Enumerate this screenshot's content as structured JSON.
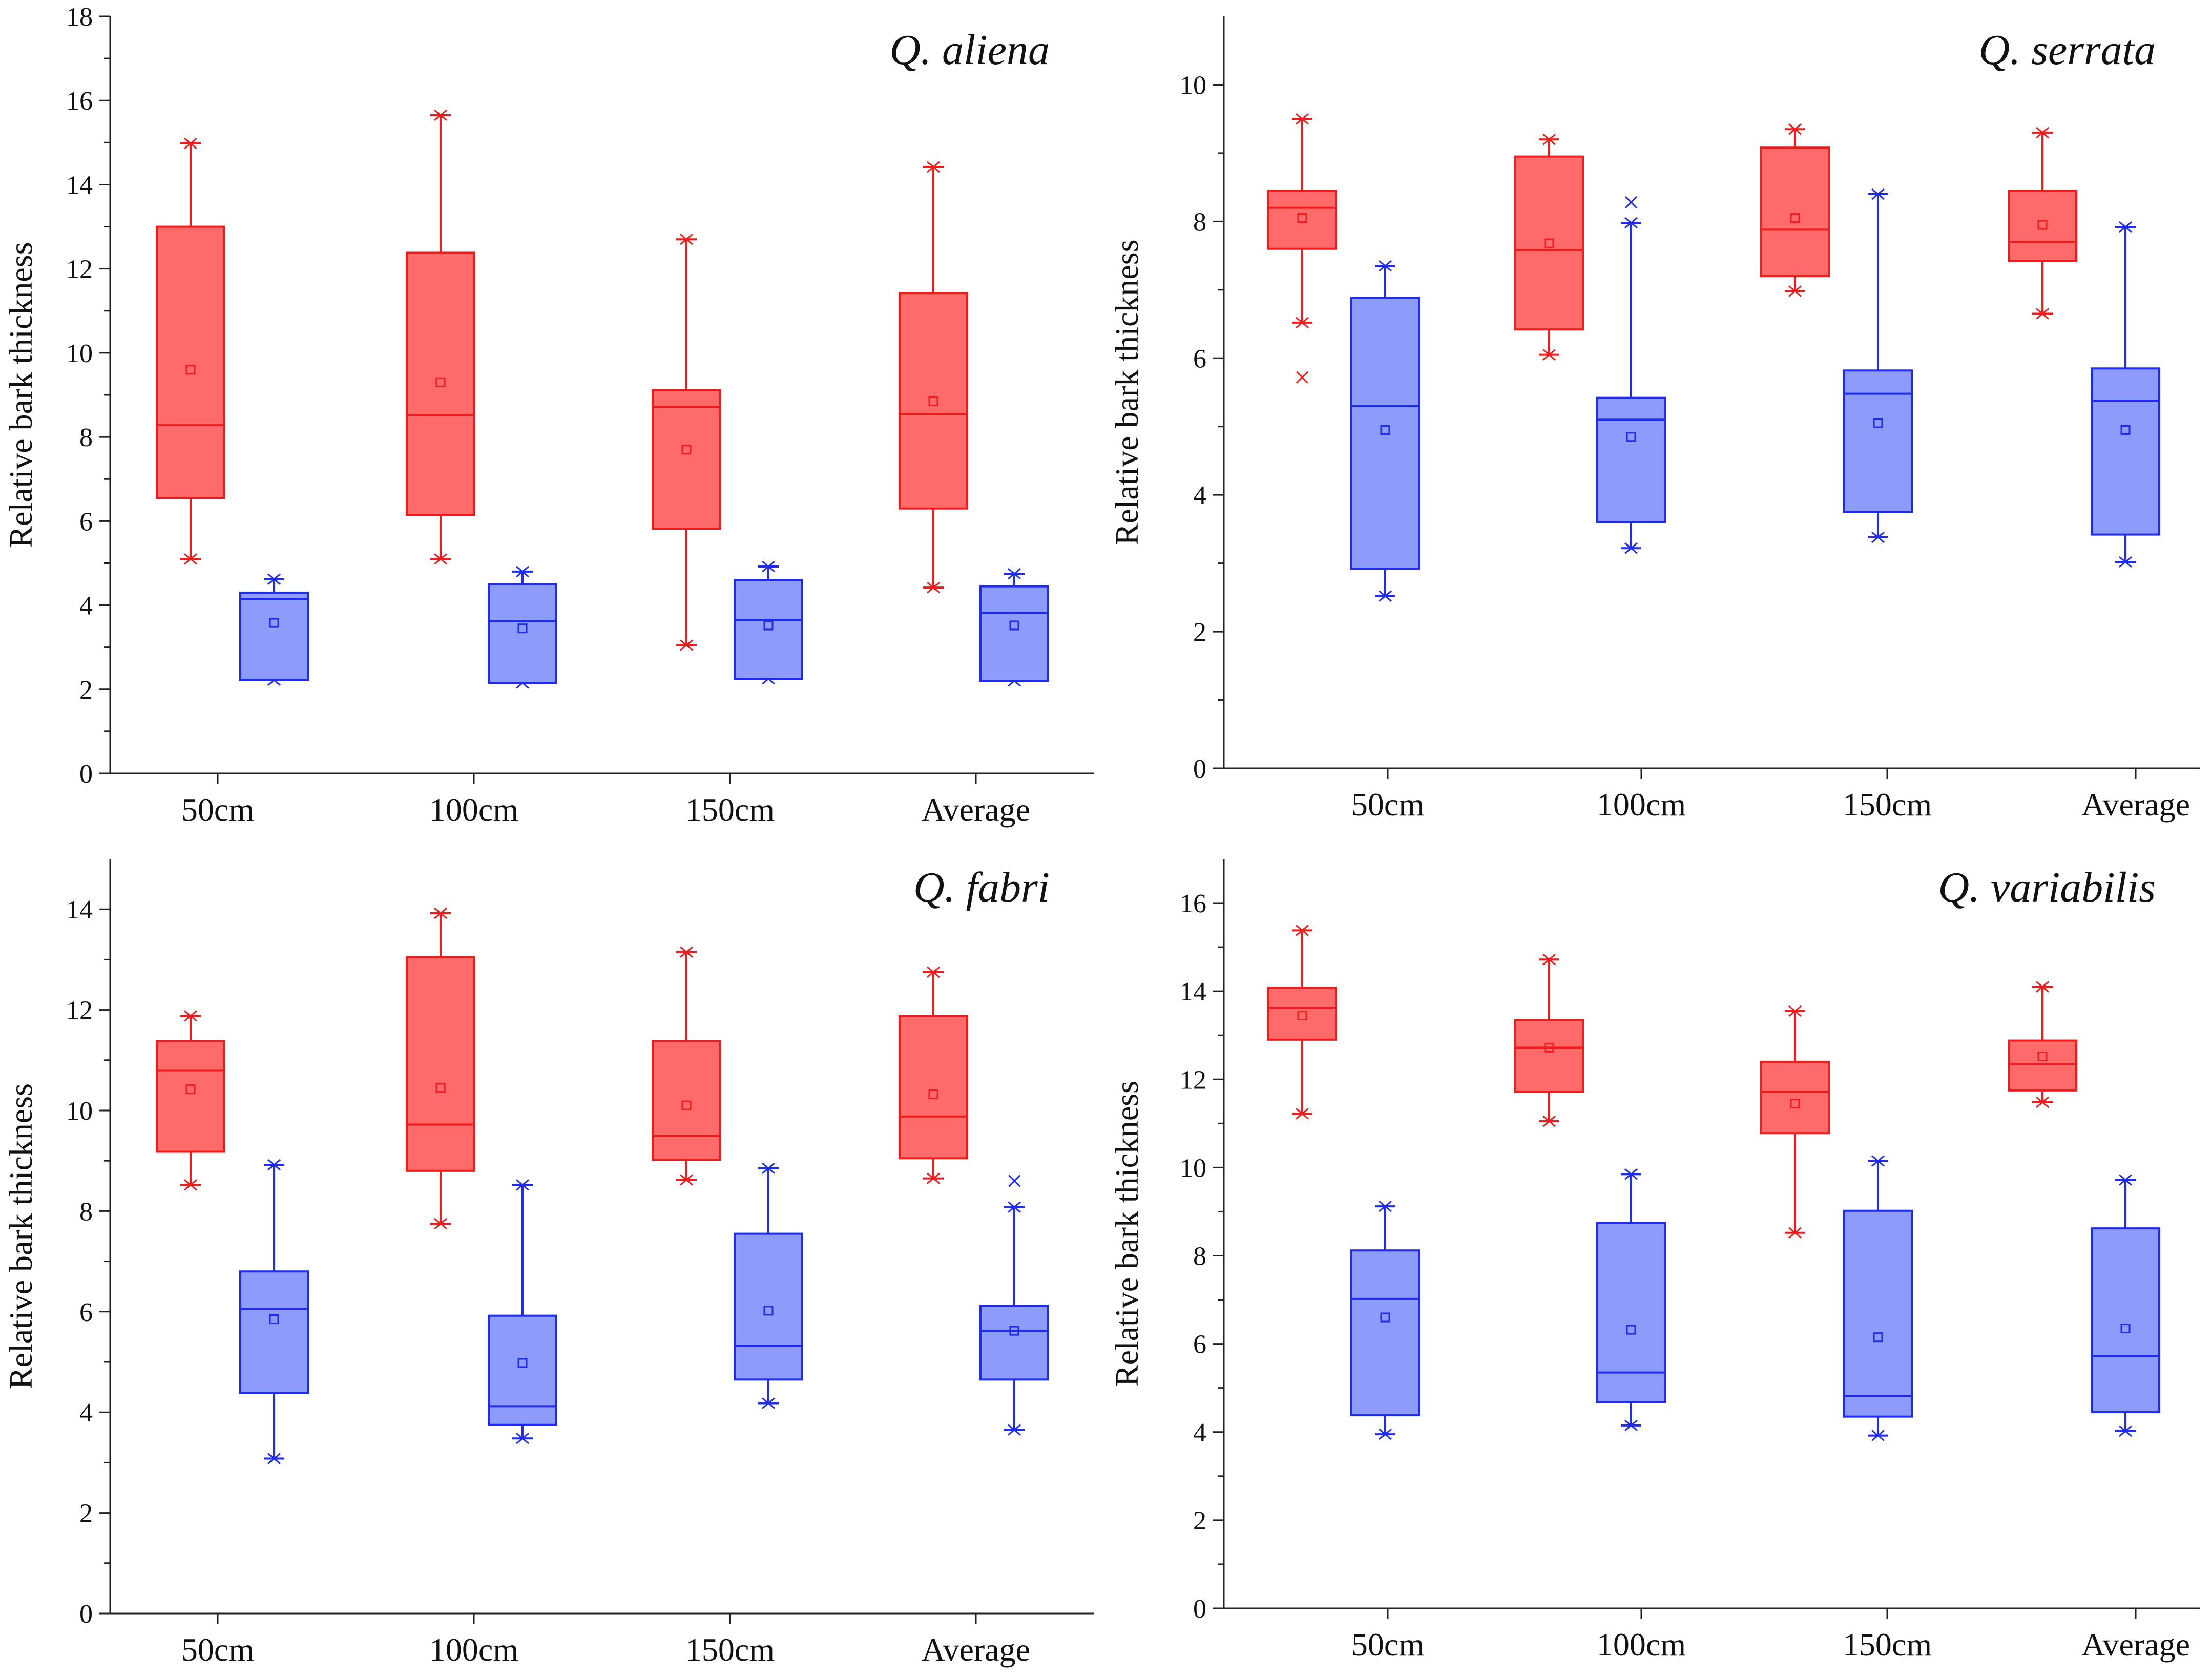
{
  "figure": {
    "colors": {
      "upper_fill": "#ff6b6b",
      "upper_stroke": "#ee1c1c",
      "lower_fill": "#8d9bfb",
      "lower_stroke": "#1f2cee",
      "axis": "#222222"
    }
  },
  "chart_data": [
    {
      "type": "box",
      "title": "Q. aliena",
      "ylabel": "Relative bark thickness",
      "xlabel": "",
      "categories": [
        "50cm",
        "100cm",
        "150cm",
        "Average"
      ],
      "ylim": [
        0,
        18
      ],
      "yticks": [
        0,
        2,
        4,
        6,
        8,
        10,
        12,
        14,
        16,
        18
      ],
      "series": [
        {
          "name": "upper",
          "boxes": [
            {
              "min": 5.1,
              "q1": 6.55,
              "median": 8.28,
              "q3": 13.0,
              "max": 14.98,
              "mean": 9.6,
              "outliers": []
            },
            {
              "min": 5.1,
              "q1": 6.15,
              "median": 8.52,
              "q3": 12.38,
              "max": 15.65,
              "mean": 9.3,
              "outliers": []
            },
            {
              "min": 3.05,
              "q1": 5.82,
              "median": 8.72,
              "q3": 9.12,
              "max": 12.7,
              "mean": 7.7,
              "outliers": []
            },
            {
              "min": 4.42,
              "q1": 6.3,
              "median": 8.55,
              "q3": 11.42,
              "max": 14.42,
              "mean": 8.85,
              "outliers": []
            }
          ]
        },
        {
          "name": "lower",
          "boxes": [
            {
              "min": 2.22,
              "q1": 2.22,
              "median": 4.15,
              "q3": 4.3,
              "max": 4.62,
              "mean": 3.58,
              "outliers": []
            },
            {
              "min": 2.15,
              "q1": 2.15,
              "median": 3.62,
              "q3": 4.5,
              "max": 4.8,
              "mean": 3.45,
              "outliers": []
            },
            {
              "min": 2.25,
              "q1": 2.25,
              "median": 3.65,
              "q3": 4.6,
              "max": 4.92,
              "mean": 3.52,
              "outliers": []
            },
            {
              "min": 2.2,
              "q1": 2.2,
              "median": 3.82,
              "q3": 4.45,
              "max": 4.75,
              "mean": 3.52,
              "outliers": []
            }
          ]
        }
      ]
    },
    {
      "type": "box",
      "title": "Q. serrata",
      "ylabel": "Relative bark thickness",
      "xlabel": "",
      "categories": [
        "50cm",
        "100cm",
        "150cm",
        "Average"
      ],
      "ylim": [
        0,
        11
      ],
      "yticks": [
        0,
        2,
        4,
        6,
        8,
        10
      ],
      "series": [
        {
          "name": "upper",
          "boxes": [
            {
              "min": 6.52,
              "q1": 7.6,
              "median": 8.2,
              "q3": 8.45,
              "max": 9.5,
              "mean": 8.05,
              "outliers": [
                5.72
              ]
            },
            {
              "min": 6.05,
              "q1": 6.42,
              "median": 7.58,
              "q3": 8.95,
              "max": 9.2,
              "mean": 7.68,
              "outliers": []
            },
            {
              "min": 6.98,
              "q1": 7.2,
              "median": 7.88,
              "q3": 9.08,
              "max": 9.35,
              "mean": 8.05,
              "outliers": []
            },
            {
              "min": 6.65,
              "q1": 7.42,
              "median": 7.7,
              "q3": 8.45,
              "max": 9.3,
              "mean": 7.95,
              "outliers": []
            }
          ]
        },
        {
          "name": "lower",
          "boxes": [
            {
              "min": 2.52,
              "q1": 2.92,
              "median": 5.3,
              "q3": 6.88,
              "max": 7.35,
              "mean": 4.95,
              "outliers": []
            },
            {
              "min": 3.22,
              "q1": 3.6,
              "median": 5.1,
              "q3": 5.42,
              "max": 7.98,
              "mean": 4.85,
              "outliers": [
                8.28
              ]
            },
            {
              "min": 3.38,
              "q1": 3.75,
              "median": 5.48,
              "q3": 5.82,
              "max": 8.4,
              "mean": 5.05,
              "outliers": []
            },
            {
              "min": 3.02,
              "q1": 3.42,
              "median": 5.38,
              "q3": 5.85,
              "max": 7.92,
              "mean": 4.95,
              "outliers": []
            }
          ]
        }
      ]
    },
    {
      "type": "box",
      "title": "Q. fabri",
      "ylabel": "Relative bark thickness",
      "xlabel": "",
      "categories": [
        "50cm",
        "100cm",
        "150cm",
        "Average"
      ],
      "ylim": [
        0,
        15
      ],
      "yticks": [
        0,
        2,
        4,
        6,
        8,
        10,
        12,
        14
      ],
      "series": [
        {
          "name": "upper",
          "boxes": [
            {
              "min": 8.52,
              "q1": 9.18,
              "median": 10.8,
              "q3": 11.38,
              "max": 11.88,
              "mean": 10.42,
              "outliers": []
            },
            {
              "min": 7.75,
              "q1": 8.8,
              "median": 9.72,
              "q3": 13.05,
              "max": 13.92,
              "mean": 10.45,
              "outliers": []
            },
            {
              "min": 8.62,
              "q1": 9.02,
              "median": 9.5,
              "q3": 11.38,
              "max": 13.15,
              "mean": 10.1,
              "outliers": []
            },
            {
              "min": 8.65,
              "q1": 9.05,
              "median": 9.88,
              "q3": 11.88,
              "max": 12.75,
              "mean": 10.32,
              "outliers": []
            }
          ]
        },
        {
          "name": "lower",
          "boxes": [
            {
              "min": 3.08,
              "q1": 4.38,
              "median": 6.05,
              "q3": 6.8,
              "max": 8.92,
              "mean": 5.85,
              "outliers": []
            },
            {
              "min": 3.48,
              "q1": 3.75,
              "median": 4.12,
              "q3": 5.92,
              "max": 8.52,
              "mean": 4.98,
              "outliers": []
            },
            {
              "min": 4.18,
              "q1": 4.65,
              "median": 5.32,
              "q3": 7.55,
              "max": 8.85,
              "mean": 6.02,
              "outliers": []
            },
            {
              "min": 3.65,
              "q1": 4.65,
              "median": 5.62,
              "q3": 6.12,
              "max": 8.08,
              "mean": 5.62,
              "outliers": [
                8.6
              ]
            }
          ]
        }
      ]
    },
    {
      "type": "box",
      "title": "Q. variabilis",
      "ylabel": "Relative bark thickness",
      "xlabel": "",
      "categories": [
        "50cm",
        "100cm",
        "150cm",
        "Average"
      ],
      "ylim": [
        0,
        17
      ],
      "yticks": [
        0,
        2,
        4,
        6,
        8,
        10,
        12,
        14,
        16
      ],
      "series": [
        {
          "name": "upper",
          "boxes": [
            {
              "min": 11.22,
              "q1": 12.9,
              "median": 13.62,
              "q3": 14.08,
              "max": 15.38,
              "mean": 13.45,
              "outliers": []
            },
            {
              "min": 11.05,
              "q1": 11.72,
              "median": 12.72,
              "q3": 13.35,
              "max": 14.72,
              "mean": 12.72,
              "outliers": []
            },
            {
              "min": 8.52,
              "q1": 10.78,
              "median": 11.72,
              "q3": 12.4,
              "max": 13.55,
              "mean": 11.45,
              "outliers": []
            },
            {
              "min": 11.48,
              "q1": 11.75,
              "median": 12.35,
              "q3": 12.88,
              "max": 14.1,
              "mean": 12.52,
              "outliers": []
            }
          ]
        },
        {
          "name": "lower",
          "boxes": [
            {
              "min": 3.95,
              "q1": 4.38,
              "median": 7.02,
              "q3": 8.12,
              "max": 9.12,
              "mean": 6.6,
              "outliers": []
            },
            {
              "min": 4.15,
              "q1": 4.68,
              "median": 5.35,
              "q3": 8.75,
              "max": 9.85,
              "mean": 6.32,
              "outliers": []
            },
            {
              "min": 3.92,
              "q1": 4.35,
              "median": 4.82,
              "q3": 9.02,
              "max": 10.15,
              "mean": 6.15,
              "outliers": []
            },
            {
              "min": 4.02,
              "q1": 4.45,
              "median": 5.72,
              "q3": 8.62,
              "max": 9.72,
              "mean": 6.35,
              "outliers": []
            }
          ]
        }
      ]
    }
  ]
}
